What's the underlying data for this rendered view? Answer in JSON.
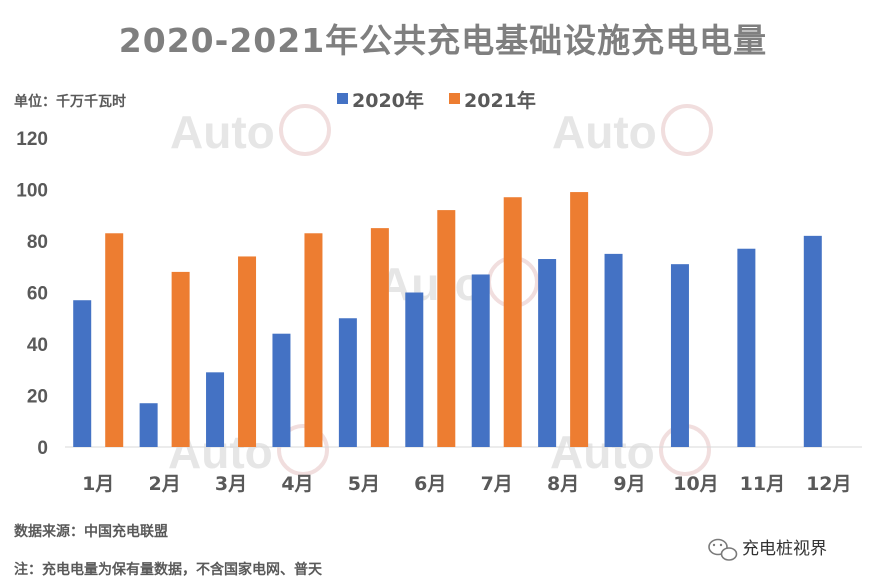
{
  "colors": {
    "series_2020": "#4472C4",
    "series_2021": "#ED7D31",
    "text": "#595959",
    "title": "#7f7f7f",
    "axis": "#d9d9d9"
  },
  "unit_label": "单位：千万千瓦时",
  "source_note": "数据来源：中国充电联盟",
  "footnote": "注：充电电量为保有量数据，不含国家电网、普天",
  "brand": {
    "icon": "wechat-icon",
    "name": "充电桩视界"
  },
  "watermark_text": "Auto",
  "chart_data": {
    "type": "bar",
    "title": "2020-2021年公共充电基础设施充电电量",
    "categories": [
      "1月",
      "2月",
      "3月",
      "4月",
      "5月",
      "6月",
      "7月",
      "8月",
      "9月",
      "10月",
      "11月",
      "12月"
    ],
    "series": [
      {
        "name": "2020年",
        "values": [
          57,
          17,
          29,
          44,
          50,
          60,
          67,
          73,
          75,
          71,
          77,
          82
        ]
      },
      {
        "name": "2021年",
        "values": [
          83,
          68,
          74,
          83,
          85,
          92,
          97,
          99,
          null,
          null,
          null,
          null
        ]
      }
    ],
    "yticks": [
      0,
      20,
      40,
      60,
      80,
      100,
      120
    ],
    "ylim": [
      0,
      120
    ],
    "grid": false,
    "legend": "top"
  }
}
